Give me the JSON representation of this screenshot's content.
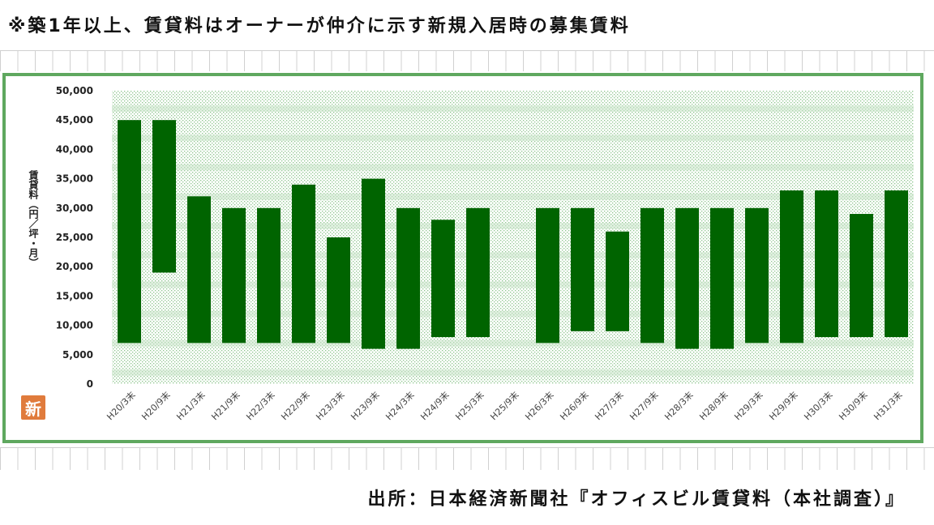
{
  "header": {
    "note": "※築1年以上、賃貸料はオーナーが仲介に示す新規入居時の募集賃料"
  },
  "footer": {
    "source": "出所：日本経済新聞社『オフィスビル賃貸料（本社調査）』"
  },
  "logo": {
    "label": "新"
  },
  "colors": {
    "bar": "#006400",
    "frame": "#5fa85f",
    "plot_dots": "#9bcf9b",
    "band": "#c9e3c9"
  },
  "chart_data": {
    "type": "bar",
    "subtype": "floating-range",
    "title": "",
    "xlabel": "",
    "ylabel": "賃貸料（円／坪・月）",
    "ylim": [
      0,
      50000
    ],
    "yticks": [
      0,
      5000,
      10000,
      15000,
      20000,
      25000,
      30000,
      35000,
      40000,
      45000,
      50000
    ],
    "ytick_labels": [
      "0",
      "5,000",
      "10,000",
      "15,000",
      "20,000",
      "25,000",
      "30,000",
      "35,000",
      "40,000",
      "45,000",
      "50,000"
    ],
    "grid": true,
    "legend": "none",
    "categories": [
      "H20/3末",
      "H20/9末",
      "H21/3末",
      "H21/9末",
      "H22/3末",
      "H22/9末",
      "H23/3末",
      "H23/9末",
      "H24/3末",
      "H24/9末",
      "H25/3末",
      "H25/9末",
      "H26/3末",
      "H26/9末",
      "H27/3末",
      "H27/9末",
      "H28/3末",
      "H28/9末",
      "H29/3末",
      "H29/9末",
      "H30/3末",
      "H30/9末",
      "H31/3末"
    ],
    "low": [
      7000,
      19000,
      7000,
      7000,
      7000,
      7000,
      7000,
      6000,
      6000,
      8000,
      8000,
      null,
      7000,
      9000,
      9000,
      7000,
      6000,
      6000,
      7000,
      7000,
      8000,
      8000,
      8000
    ],
    "high": [
      45000,
      45000,
      32000,
      30000,
      30000,
      34000,
      25000,
      35000,
      30000,
      28000,
      30000,
      null,
      30000,
      30000,
      26000,
      30000,
      30000,
      30000,
      30000,
      33000,
      33000,
      29000,
      33000
    ]
  }
}
